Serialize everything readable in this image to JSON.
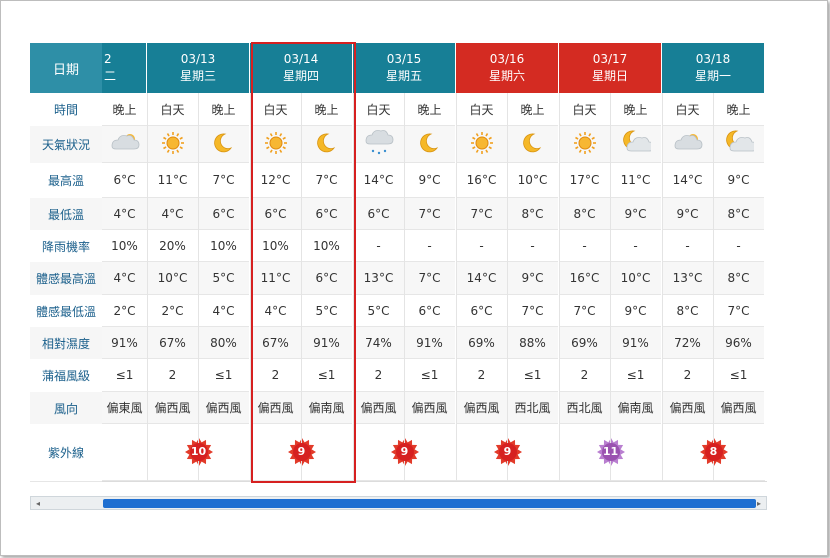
{
  "row_labels": [
    "日期",
    "時間",
    "天氣狀況",
    "最高溫",
    "最低溫",
    "降雨機率",
    "體感最高溫",
    "體感最低溫",
    "相對濕度",
    "蒲福風級",
    "風向",
    "紫外線"
  ],
  "partial_day": {
    "date": "2",
    "weekday": "二",
    "night_label": "晚上"
  },
  "days": [
    {
      "date": "03/13",
      "weekday": "星期三",
      "type": "weekday"
    },
    {
      "date": "03/14",
      "weekday": "星期四",
      "type": "weekday"
    },
    {
      "date": "03/15",
      "weekday": "星期五",
      "type": "weekday"
    },
    {
      "date": "03/16",
      "weekday": "星期六",
      "type": "weekend"
    },
    {
      "date": "03/17",
      "weekday": "星期日",
      "type": "weekend"
    },
    {
      "date": "03/18",
      "weekday": "星期一",
      "type": "weekday"
    }
  ],
  "time_labels": {
    "day": "白天",
    "night": "晚上"
  },
  "partial_col": {
    "icon": "cloudy-icon",
    "max": "6°C",
    "min": "4°C",
    "rain": "10%",
    "feel_max": "4°C",
    "feel_min": "2°C",
    "humidity": "91%",
    "wind_level": "≤1",
    "wind_dir": "偏東風",
    "uv": ""
  },
  "columns": [
    {
      "icon": "sunny-icon",
      "max": "11°C",
      "min": "4°C",
      "rain": "20%",
      "feel_max": "10°C",
      "feel_min": "2°C",
      "humidity": "67%",
      "wind_level": "2",
      "wind_dir": "偏西風"
    },
    {
      "icon": "moon-icon",
      "max": "7°C",
      "min": "6°C",
      "rain": "10%",
      "feel_max": "5°C",
      "feel_min": "4°C",
      "humidity": "80%",
      "wind_level": "≤1",
      "wind_dir": "偏西風"
    },
    {
      "icon": "sunny-icon",
      "max": "12°C",
      "min": "6°C",
      "rain": "10%",
      "feel_max": "11°C",
      "feel_min": "4°C",
      "humidity": "67%",
      "wind_level": "2",
      "wind_dir": "偏西風"
    },
    {
      "icon": "moon-icon",
      "max": "7°C",
      "min": "6°C",
      "rain": "10%",
      "feel_max": "6°C",
      "feel_min": "5°C",
      "humidity": "91%",
      "wind_level": "≤1",
      "wind_dir": "偏南風"
    },
    {
      "icon": "rain-cloud-icon",
      "max": "14°C",
      "min": "6°C",
      "rain": "-",
      "feel_max": "13°C",
      "feel_min": "5°C",
      "humidity": "74%",
      "wind_level": "2",
      "wind_dir": "偏西風"
    },
    {
      "icon": "moon-icon",
      "max": "9°C",
      "min": "7°C",
      "rain": "-",
      "feel_max": "7°C",
      "feel_min": "6°C",
      "humidity": "91%",
      "wind_level": "≤1",
      "wind_dir": "偏西風"
    },
    {
      "icon": "sunny-icon",
      "max": "16°C",
      "min": "7°C",
      "rain": "-",
      "feel_max": "14°C",
      "feel_min": "6°C",
      "humidity": "69%",
      "wind_level": "2",
      "wind_dir": "偏西風"
    },
    {
      "icon": "moon-icon",
      "max": "10°C",
      "min": "8°C",
      "rain": "-",
      "feel_max": "9°C",
      "feel_min": "7°C",
      "humidity": "88%",
      "wind_level": "≤1",
      "wind_dir": "西北風"
    },
    {
      "icon": "sunny-icon",
      "max": "17°C",
      "min": "8°C",
      "rain": "-",
      "feel_max": "16°C",
      "feel_min": "7°C",
      "humidity": "69%",
      "wind_level": "2",
      "wind_dir": "西北風"
    },
    {
      "icon": "moon-cloud-icon",
      "max": "11°C",
      "min": "9°C",
      "rain": "-",
      "feel_max": "10°C",
      "feel_min": "9°C",
      "humidity": "91%",
      "wind_level": "≤1",
      "wind_dir": "偏南風"
    },
    {
      "icon": "cloudy-icon",
      "max": "14°C",
      "min": "9°C",
      "rain": "-",
      "feel_max": "13°C",
      "feel_min": "8°C",
      "humidity": "72%",
      "wind_level": "2",
      "wind_dir": "偏西風"
    },
    {
      "icon": "moon-cloud-icon",
      "max": "9°C",
      "min": "8°C",
      "rain": "-",
      "feel_max": "8°C",
      "feel_min": "7°C",
      "humidity": "96%",
      "wind_level": "≤1",
      "wind_dir": "偏西風"
    }
  ],
  "uv": [
    "10",
    "9",
    "9",
    "9",
    "11",
    "8"
  ],
  "uv_colors": [
    "red",
    "red",
    "red",
    "red",
    "purple",
    "red"
  ],
  "colors": {
    "weekday": "#177f96",
    "weekend": "#d42b22",
    "highlight": "#d62020",
    "label": "#1a5f8b"
  }
}
